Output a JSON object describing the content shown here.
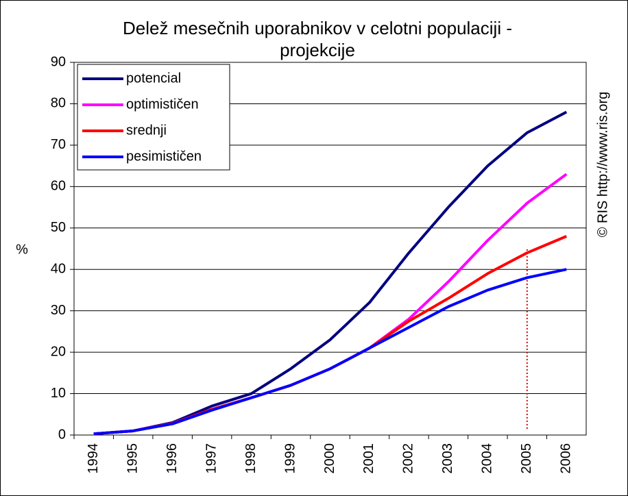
{
  "chart_data": {
    "type": "line",
    "title": [
      "Delež mesečnih uporabnikov v celotni populaciji -",
      "projekcije"
    ],
    "y_label": "%",
    "side_note": "© RIS http://www.ris.org",
    "categories": [
      "1994",
      "1995",
      "1996",
      "1997",
      "1998",
      "1999",
      "2000",
      "2001",
      "2002",
      "2003",
      "2004",
      "2005",
      "2006"
    ],
    "series": [
      {
        "name": "potencial",
        "color": "#000080",
        "values": [
          0.3,
          1,
          3,
          7,
          10,
          16,
          23,
          32,
          44,
          55,
          65,
          73,
          78
        ]
      },
      {
        "name": "optimističen",
        "color": "#ff00ff",
        "values": [
          0.3,
          1,
          2.8,
          6.2,
          9,
          12,
          16,
          21,
          28,
          37,
          47,
          56,
          63
        ]
      },
      {
        "name": "srednji",
        "color": "#ff0000",
        "values": [
          0.3,
          1,
          2.8,
          6.2,
          9,
          12,
          16,
          21,
          27.5,
          33,
          39,
          44,
          48
        ]
      },
      {
        "name": "pesimističen",
        "color": "#0000ff",
        "values": [
          0.3,
          1,
          2.7,
          6,
          9,
          12,
          16,
          21,
          26,
          31,
          35,
          38,
          40
        ]
      }
    ],
    "reference_line": {
      "x": "2005",
      "y": [
        1.5,
        45
      ],
      "color": "#cc0000"
    },
    "ylim": [
      0,
      90
    ],
    "yticks": [
      0,
      10,
      20,
      30,
      40,
      50,
      60,
      70,
      80,
      90
    ],
    "grid": true,
    "legend": "top-left"
  }
}
